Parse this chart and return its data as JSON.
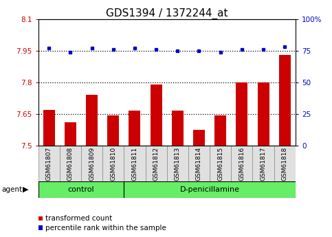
{
  "title": "GDS1394 / 1372244_at",
  "samples": [
    "GSM61807",
    "GSM61808",
    "GSM61809",
    "GSM61810",
    "GSM61811",
    "GSM61812",
    "GSM61813",
    "GSM61814",
    "GSM61815",
    "GSM61816",
    "GSM61817",
    "GSM61818"
  ],
  "bar_values": [
    7.67,
    7.61,
    7.74,
    7.645,
    7.665,
    7.79,
    7.665,
    7.575,
    7.645,
    7.8,
    7.8,
    7.93
  ],
  "percentile_values": [
    77,
    74,
    77,
    76,
    77,
    76,
    75,
    75,
    74,
    76,
    76,
    78
  ],
  "bar_color": "#cc0000",
  "percentile_color": "#0000cc",
  "ylim_left": [
    7.5,
    8.1
  ],
  "ylim_right": [
    0,
    100
  ],
  "yticks_left": [
    7.5,
    7.65,
    7.8,
    7.95,
    8.1
  ],
  "ytick_labels_left": [
    "7.5",
    "7.65",
    "7.8",
    "7.95",
    "8.1"
  ],
  "yticks_right": [
    0,
    25,
    50,
    75,
    100
  ],
  "ytick_labels_right": [
    "0",
    "25",
    "50",
    "75",
    "100%"
  ],
  "hlines": [
    7.65,
    7.8,
    7.95
  ],
  "n_control": 4,
  "n_dpen": 8,
  "group_labels": [
    "control",
    "D-penicillamine"
  ],
  "group_color": "#66ee66",
  "agent_label": "agent",
  "legend_bar_label": "transformed count",
  "legend_dot_label": "percentile rank within the sample",
  "title_fontsize": 11,
  "tick_fontsize": 7.5,
  "label_fontsize": 6.5,
  "group_fontsize": 8,
  "legend_fontsize": 7.5
}
